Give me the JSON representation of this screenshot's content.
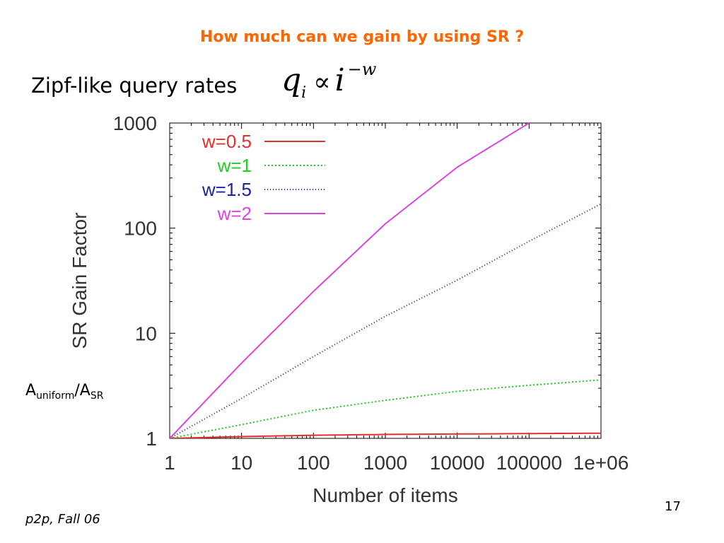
{
  "slide": {
    "title": "How much can we gain by using SR ?",
    "subtitle": "Zipf-like query rates",
    "formula": {
      "q": "q",
      "q_sub": "i",
      "prop": "∝",
      "i": "i",
      "exp": "−w"
    },
    "ratio": {
      "a1": "A",
      "s1": "uniform",
      "slash": "/",
      "a2": "A",
      "s2": "SR"
    },
    "footer": "p2p, Fall 06",
    "page_number": "17"
  },
  "chart_data": {
    "type": "line",
    "title": "",
    "xlabel": "Number of items",
    "ylabel": "SR Gain Factor",
    "x_scale": "log",
    "y_scale": "log",
    "xlim": [
      1,
      1000000
    ],
    "ylim": [
      1,
      1000
    ],
    "x_ticks": [
      {
        "value": 1,
        "label": "1"
      },
      {
        "value": 10,
        "label": "10"
      },
      {
        "value": 100,
        "label": "100"
      },
      {
        "value": 1000,
        "label": "1000"
      },
      {
        "value": 10000,
        "label": "10000"
      },
      {
        "value": 100000,
        "label": "100000"
      },
      {
        "value": 1000000,
        "label": "1e+06"
      }
    ],
    "y_ticks": [
      {
        "value": 1,
        "label": "1"
      },
      {
        "value": 10,
        "label": "10"
      },
      {
        "value": 100,
        "label": "100"
      },
      {
        "value": 1000,
        "label": "1000"
      }
    ],
    "grid": false,
    "legend_position": "top-left",
    "series": [
      {
        "name": "w=0.5",
        "color": "#e03030",
        "dash": "solid",
        "x": [
          1,
          10,
          100,
          1000,
          10000,
          100000,
          1000000
        ],
        "y": [
          1.0,
          1.04,
          1.07,
          1.09,
          1.1,
          1.11,
          1.12
        ]
      },
      {
        "name": "w=1",
        "color": "#22cc22",
        "dash": "2,3",
        "x": [
          1,
          10,
          100,
          1000,
          10000,
          100000,
          1000000
        ],
        "y": [
          1.0,
          1.35,
          1.85,
          2.3,
          2.8,
          3.2,
          3.6
        ]
      },
      {
        "name": "w=1.5",
        "color": "#2020a0",
        "dash": "1,3",
        "x": [
          1,
          10,
          100,
          1000,
          10000,
          100000,
          1000000
        ],
        "y": [
          1.0,
          2.4,
          6.0,
          14.5,
          32,
          75,
          170
        ]
      },
      {
        "name": "w=2",
        "color": "#dd44dd",
        "dash": "solid",
        "x": [
          1,
          10,
          100,
          1000,
          10000,
          100000
        ],
        "y": [
          1.0,
          5.2,
          25,
          110,
          380,
          1000
        ]
      }
    ]
  }
}
